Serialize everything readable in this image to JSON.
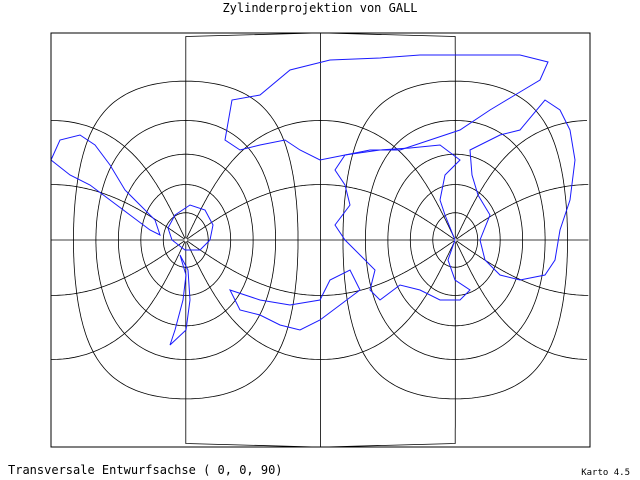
{
  "title": "Zylinderprojektion von GALL",
  "footer": {
    "projection_axis": "Transversale Entwurfsachse ( 0, 0, 90)",
    "software": "Karto 4.5"
  }
}
